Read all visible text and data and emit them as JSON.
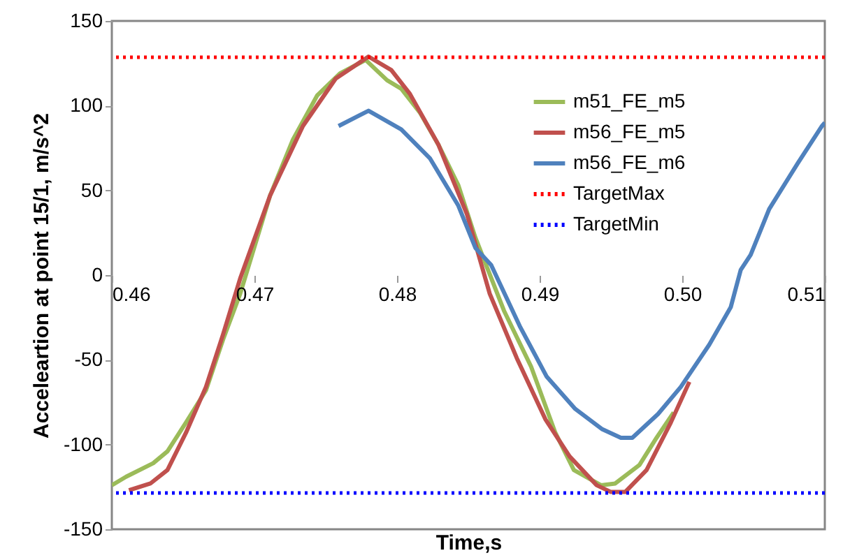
{
  "chart_data": {
    "type": "line",
    "xlabel": "Time,s",
    "ylabel": "Acceleartion at point 15/1, m/s^2",
    "xlim": [
      0.46,
      0.51
    ],
    "ylim": [
      -150,
      150
    ],
    "xticks": [
      0.46,
      0.47,
      0.48,
      0.49,
      {
        "value": 0.5,
        "label": "0.50"
      },
      0.51
    ],
    "yticks": [
      -150,
      -100,
      -50,
      0,
      50,
      100,
      150
    ],
    "grid": false,
    "legend": "right",
    "line_style": "solid",
    "series": [
      {
        "name": "m51_FE_m5",
        "color": "#9bbb59",
        "x": [
          0.46,
          0.461,
          0.4629,
          0.4639,
          0.4652,
          0.4666,
          0.4678,
          0.469,
          0.4711,
          0.4727,
          0.4744,
          0.476,
          0.4778,
          0.4793,
          0.4803,
          0.4816,
          0.4829,
          0.4843,
          0.4855,
          0.4875,
          0.4894,
          0.4911,
          0.4924,
          0.4943,
          0.4953,
          0.497,
          0.4982,
          0.4994
        ],
        "values": [
          -124,
          -119,
          -111,
          -104,
          -87,
          -68,
          -38,
          -11,
          47,
          80,
          106,
          119,
          127,
          115,
          110,
          96,
          77,
          53,
          22,
          -21,
          -54,
          -93,
          -115,
          -124,
          -123,
          -112,
          -96,
          -81
        ]
      },
      {
        "name": "m56_FE_m5",
        "color": "#c0504d",
        "x": [
          0.4612,
          0.4627,
          0.4639,
          0.4652,
          0.4666,
          0.4678,
          0.469,
          0.4711,
          0.4734,
          0.4757,
          0.478,
          0.4796,
          0.4809,
          0.4829,
          0.4849,
          0.4865,
          0.4884,
          0.4904,
          0.4921,
          0.494,
          0.495,
          0.496,
          0.4975,
          0.4992,
          0.5005
        ],
        "values": [
          -127,
          -123,
          -115,
          -93,
          -66,
          -35,
          -2,
          47,
          88,
          116,
          129,
          121,
          107,
          77,
          36,
          -11,
          -49,
          -85,
          -107,
          -124,
          -128,
          -128,
          -115,
          -87,
          -63
        ]
      },
      {
        "name": "m56_FE_m6",
        "color": "#4f81bd",
        "x": [
          0.4759,
          0.478,
          0.4803,
          0.4823,
          0.4843,
          0.4855,
          0.4866,
          0.4886,
          0.4905,
          0.4925,
          0.4944,
          0.4957,
          0.4965,
          0.4983,
          0.4999,
          0.5019,
          0.5034,
          0.5041,
          0.5048,
          0.5061,
          0.5081,
          0.5098,
          0.51
        ],
        "values": [
          88,
          97,
          86,
          69,
          41,
          16,
          6,
          -30,
          -60,
          -79,
          -91,
          -96,
          -96,
          -82,
          -66,
          -41,
          -19,
          3,
          12,
          39,
          66,
          88,
          90
        ]
      }
    ],
    "ref_lines": [
      {
        "axis": "y",
        "value": 128.6,
        "label": "TargetMax",
        "color": "#ff0000",
        "line_style": "dotted"
      },
      {
        "axis": "y",
        "value": -128.6,
        "label": "TargetMin",
        "color": "#0000ff",
        "line_style": "dotted"
      }
    ]
  }
}
